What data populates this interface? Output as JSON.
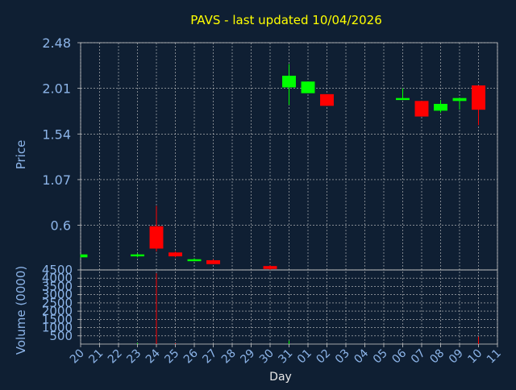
{
  "chart_data": {
    "type": "candlestick",
    "title": "PAVS - last updated 10/04/2026",
    "xlabel": "Day",
    "price_ylabel": "Price",
    "volume_ylabel": "Volume (0000)",
    "x_ticks": [
      "20",
      "21",
      "22",
      "23",
      "24",
      "25",
      "26",
      "27",
      "28",
      "29",
      "30",
      "31",
      "01",
      "02",
      "03",
      "04",
      "05",
      "06",
      "07",
      "08",
      "09",
      "10",
      "11"
    ],
    "price_ticks": [
      "0.6",
      "1.07",
      "1.54",
      "2.01",
      "2.48"
    ],
    "price_ylim": [
      0.14,
      2.48
    ],
    "volume_ticks": [
      "500",
      "1000",
      "1500",
      "2000",
      "2500",
      "3000",
      "3500",
      "4000",
      "4500"
    ],
    "volume_ylim": [
      0,
      4500
    ],
    "candles": [
      {
        "day": "20",
        "open": 0.27,
        "close": 0.3,
        "high": 0.3,
        "low": 0.27
      },
      {
        "day": "23",
        "open": 0.28,
        "close": 0.3,
        "high": 0.31,
        "low": 0.27
      },
      {
        "day": "24",
        "open": 0.59,
        "close": 0.36,
        "high": 0.8,
        "low": 0.33
      },
      {
        "day": "25",
        "open": 0.32,
        "close": 0.28,
        "high": 0.33,
        "low": 0.27
      },
      {
        "day": "26",
        "open": 0.23,
        "close": 0.25,
        "high": 0.26,
        "low": 0.23
      },
      {
        "day": "27",
        "open": 0.24,
        "close": 0.2,
        "high": 0.25,
        "low": 0.2
      },
      {
        "day": "30",
        "open": 0.18,
        "close": 0.15,
        "high": 0.19,
        "low": 0.14
      },
      {
        "day": "31",
        "open": 2.02,
        "close": 2.14,
        "high": 2.26,
        "low": 1.84
      },
      {
        "day": "01",
        "open": 1.96,
        "close": 2.08,
        "high": 2.08,
        "low": 1.96
      },
      {
        "day": "02",
        "open": 1.95,
        "close": 1.83,
        "high": 1.95,
        "low": 1.83
      },
      {
        "day": "06",
        "open": 1.89,
        "close": 1.91,
        "high": 2.01,
        "low": 1.89
      },
      {
        "day": "07",
        "open": 1.88,
        "close": 1.72,
        "high": 1.88,
        "low": 1.72
      },
      {
        "day": "08",
        "open": 1.78,
        "close": 1.85,
        "high": 1.89,
        "low": 1.76
      },
      {
        "day": "09",
        "open": 1.88,
        "close": 1.91,
        "high": 1.91,
        "low": 1.79
      },
      {
        "day": "10",
        "open": 2.04,
        "close": 1.79,
        "high": 2.04,
        "low": 1.63
      }
    ],
    "volumes": [
      {
        "day": "23",
        "value": 60
      },
      {
        "day": "24",
        "value": 4300
      },
      {
        "day": "25",
        "value": 40
      },
      {
        "day": "31",
        "value": 200
      },
      {
        "day": "10",
        "value": 450
      }
    ],
    "colors": {
      "background": "#0f1f33",
      "title": "#ffff00",
      "axis_text": "#8cb4e8",
      "grid": "#c8c8c8",
      "up": "#00ff00",
      "down": "#ff0000"
    }
  }
}
